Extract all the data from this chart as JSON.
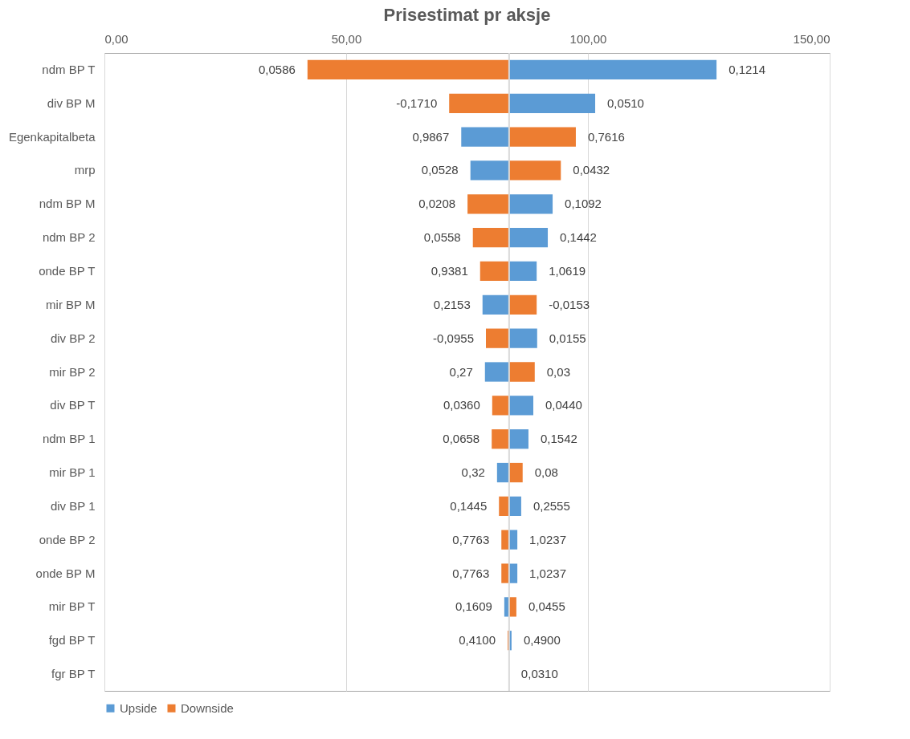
{
  "chart_data": {
    "type": "bar",
    "orientation": "horizontal",
    "title": "Prisestimat pr aksje",
    "categories": [
      "ndm BP T",
      "div BP M",
      "Egenkapitalbeta",
      "mrp",
      "ndm BP M",
      "ndm BP 2",
      "onde BP T",
      "mir BP M",
      "div BP 2",
      "mir BP 2",
      "div BP T",
      "ndm BP 1",
      "mir BP 1",
      "div BP 1",
      "onde BP 2",
      "onde BP M",
      "mir BP T",
      "fgd BP T",
      "fgr BP T"
    ],
    "series": [
      {
        "name": "Upside",
        "color": "#5b9bd5",
        "base": [
          83.7,
          83.7,
          83.7,
          83.7,
          83.7,
          83.7,
          83.7,
          83.7,
          83.7,
          83.7,
          83.7,
          83.7,
          83.7,
          83.7,
          83.7,
          83.7,
          83.7,
          83.7,
          null
        ],
        "values": [
          42.9,
          17.8,
          -9.9,
          -8.0,
          9.0,
          8.0,
          5.7,
          -5.5,
          5.8,
          -5.0,
          5.0,
          4.0,
          -2.5,
          2.5,
          1.7,
          1.7,
          -1.0,
          0.5,
          null
        ]
      },
      {
        "name": "Downside",
        "color": "#ed7d31",
        "base": [
          83.7,
          83.7,
          83.7,
          83.7,
          83.7,
          83.7,
          83.7,
          83.7,
          83.7,
          83.7,
          83.7,
          83.7,
          83.7,
          83.7,
          83.7,
          83.7,
          83.7,
          83.7,
          null
        ],
        "values": [
          -41.7,
          -12.4,
          13.8,
          10.7,
          -8.6,
          -7.5,
          -6.0,
          5.7,
          -4.8,
          5.3,
          -3.5,
          -3.6,
          2.8,
          -2.1,
          -1.6,
          -1.6,
          1.5,
          -0.3,
          null
        ]
      }
    ],
    "annotations": [
      {
        "text": "0,1214",
        "x": 126.6,
        "y": "ndm BP T"
      },
      {
        "text": "0,0586",
        "x": 42.0,
        "y": "ndm BP T"
      },
      {
        "text": "0,0510",
        "x": 101.5,
        "y": "div BP M"
      },
      {
        "text": "-0,1710",
        "x": 71.3,
        "y": "div BP M"
      },
      {
        "text": "0,9867",
        "x": 73.8,
        "y": "Egenkapitalbeta"
      },
      {
        "text": "0,7616",
        "x": 97.5,
        "y": "Egenkapitalbeta"
      },
      {
        "text": "0,0528",
        "x": 75.7,
        "y": "mrp"
      },
      {
        "text": "0,0432",
        "x": 94.4,
        "y": "mrp"
      },
      {
        "text": "0,1092",
        "x": 92.7,
        "y": "ndm BP M"
      },
      {
        "text": "0,0208",
        "x": 75.1,
        "y": "ndm BP M"
      },
      {
        "text": "0,1442",
        "x": 91.7,
        "y": "ndm BP 2"
      },
      {
        "text": "0,0558",
        "x": 76.2,
        "y": "ndm BP 2"
      },
      {
        "text": "1,0619",
        "x": 89.4,
        "y": "onde BP T"
      },
      {
        "text": "0,9381",
        "x": 77.7,
        "y": "onde BP T"
      },
      {
        "text": "0,2153",
        "x": 78.2,
        "y": "mir BP M"
      },
      {
        "text": "-0,0153",
        "x": 89.4,
        "y": "mir BP M"
      },
      {
        "text": "0,0155",
        "x": 89.5,
        "y": "div BP 2"
      },
      {
        "text": "-0,0955",
        "x": 78.9,
        "y": "div BP 2"
      },
      {
        "text": "0,27",
        "x": 78.7,
        "y": "mir BP 2"
      },
      {
        "text": "0,03",
        "x": 89.0,
        "y": "mir BP 2"
      },
      {
        "text": "0,0440",
        "x": 88.7,
        "y": "div BP T"
      },
      {
        "text": "0,0360",
        "x": 80.2,
        "y": "div BP T"
      },
      {
        "text": "0,1542",
        "x": 87.7,
        "y": "ndm BP 1"
      },
      {
        "text": "0,0658",
        "x": 80.1,
        "y": "ndm BP 1"
      },
      {
        "text": "0,32",
        "x": 81.2,
        "y": "mir BP 1"
      },
      {
        "text": "0,08",
        "x": 86.5,
        "y": "mir BP 1"
      },
      {
        "text": "0,2555",
        "x": 86.2,
        "y": "div BP 1"
      },
      {
        "text": "0,1445",
        "x": 81.6,
        "y": "div BP 1"
      },
      {
        "text": "1,0237",
        "x": 85.4,
        "y": "onde BP 2"
      },
      {
        "text": "0,7763",
        "x": 82.1,
        "y": "onde BP 2"
      },
      {
        "text": "1,0237",
        "x": 85.4,
        "y": "onde BP M"
      },
      {
        "text": "0,7763",
        "x": 82.1,
        "y": "onde BP M"
      },
      {
        "text": "0,1609",
        "x": 82.7,
        "y": "mir BP T"
      },
      {
        "text": "0,0455",
        "x": 85.2,
        "y": "mir BP T"
      },
      {
        "text": "0,4900",
        "x": 84.2,
        "y": "fgd BP T"
      },
      {
        "text": "0,4100",
        "x": 83.4,
        "y": "fgd BP T"
      },
      {
        "text": "0,0310",
        "x": 83.7,
        "y": "fgr BP T"
      }
    ],
    "xlim": [
      0,
      150
    ],
    "xticks": [
      {
        "value": 0,
        "label": "0,00"
      },
      {
        "value": 50,
        "label": "50,00"
      },
      {
        "value": 100,
        "label": "100,00"
      },
      {
        "value": 150,
        "label": "150,00"
      }
    ],
    "ref_lines": [
      {
        "axis": "x",
        "value": 83.7,
        "color": "#d9d9d9"
      }
    ],
    "grid": true,
    "legend": "bottom"
  }
}
